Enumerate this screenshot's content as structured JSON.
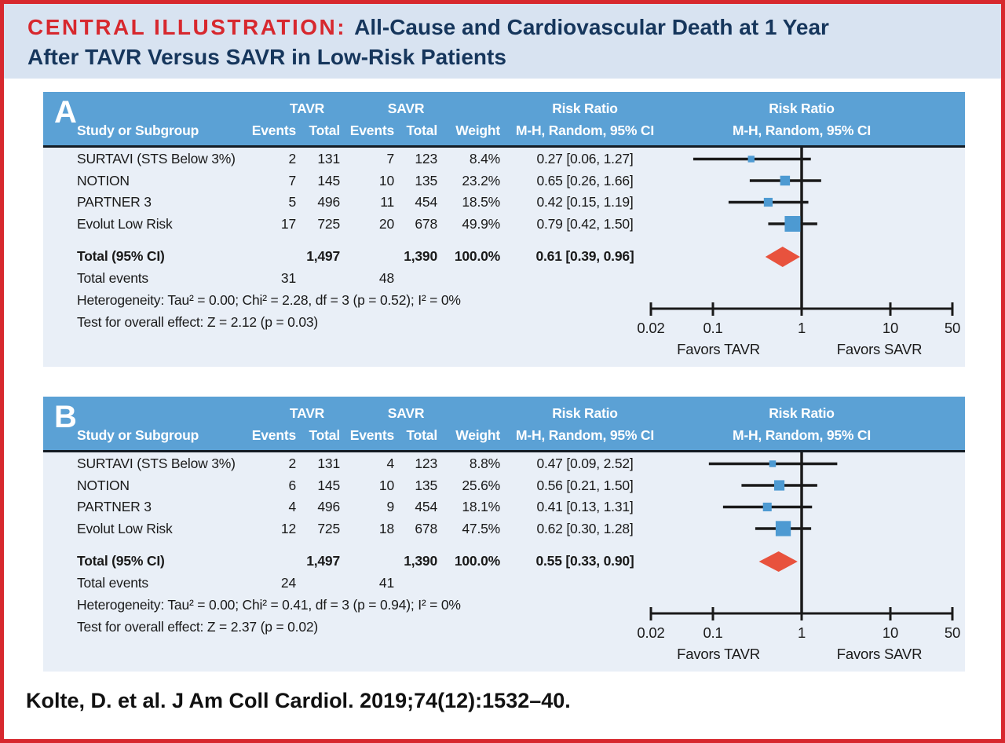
{
  "header": {
    "label": "CENTRAL ILLUSTRATION:",
    "title_line1": "All-Cause and Cardiovascular Death at 1 Year",
    "title_line2": "After TAVR Versus SAVR in Low-Risk Patients"
  },
  "footer": {
    "citation": "Kolte, D. et al. J Am Coll Cardiol. 2019;74(12):1532–40."
  },
  "colors": {
    "border_red": "#d7282e",
    "banner_bg": "#d8e3f1",
    "title_navy": "#16365c",
    "title_red": "#d7282e",
    "panel_header_blue": "#5ba1d5",
    "panel_body_bg": "#e9eff7",
    "marker_blue": "#4d9ad2",
    "diamond_red": "#e8523d",
    "line_color": "#1a1a1a"
  },
  "chart_data": {
    "type": "forest",
    "x_scale": "log",
    "xlim": [
      0.02,
      50
    ],
    "columns": {
      "study": "Study or Subgroup",
      "group1": "TAVR",
      "group2": "SAVR",
      "events": "Events",
      "total": "Total",
      "weight": "Weight",
      "risk_ratio": "Risk Ratio",
      "method": "M-H, Random, 95% CI"
    },
    "axis": {
      "ticks": [
        "0.02",
        "0.1",
        "1",
        "10",
        "50"
      ],
      "favors_left": "Favors TAVR",
      "favors_right": "Favors SAVR"
    },
    "panels": [
      {
        "label": "A",
        "studies": [
          {
            "name": "SURTAVI (STS Below 3%)",
            "tavr_events": "2",
            "tavr_total": "131",
            "savr_events": "7",
            "savr_total": "123",
            "weight": "8.4%",
            "weight_pct": 8.4,
            "rr_label": "0.27 [0.06, 1.27]",
            "rr": 0.27,
            "ci_low": 0.06,
            "ci_high": 1.27
          },
          {
            "name": "NOTION",
            "tavr_events": "7",
            "tavr_total": "145",
            "savr_events": "10",
            "savr_total": "135",
            "weight": "23.2%",
            "weight_pct": 23.2,
            "rr_label": "0.65 [0.26, 1.66]",
            "rr": 0.65,
            "ci_low": 0.26,
            "ci_high": 1.66
          },
          {
            "name": "PARTNER 3",
            "tavr_events": "5",
            "tavr_total": "496",
            "savr_events": "11",
            "savr_total": "454",
            "weight": "18.5%",
            "weight_pct": 18.5,
            "rr_label": "0.42 [0.15, 1.19]",
            "rr": 0.42,
            "ci_low": 0.15,
            "ci_high": 1.19
          },
          {
            "name": "Evolut Low Risk",
            "tavr_events": "17",
            "tavr_total": "725",
            "savr_events": "20",
            "savr_total": "678",
            "weight": "49.9%",
            "weight_pct": 49.9,
            "rr_label": "0.79 [0.42, 1.50]",
            "rr": 0.79,
            "ci_low": 0.42,
            "ci_high": 1.5
          }
        ],
        "total": {
          "label": "Total (95% CI)",
          "tavr_total": "1,497",
          "savr_total": "1,390",
          "weight": "100.0%",
          "rr_label": "0.61 [0.39, 0.96]",
          "rr": 0.61,
          "ci_low": 0.39,
          "ci_high": 0.96
        },
        "total_events": {
          "label": "Total events",
          "tavr": "31",
          "savr": "48"
        },
        "heterogeneity": "Heterogeneity: Tau² = 0.00; Chi² = 2.28, df = 3 (p = 0.52); I² = 0%",
        "overall_effect": "Test for overall effect: Z = 2.12 (p = 0.03)"
      },
      {
        "label": "B",
        "studies": [
          {
            "name": "SURTAVI (STS Below 3%)",
            "tavr_events": "2",
            "tavr_total": "131",
            "savr_events": "4",
            "savr_total": "123",
            "weight": "8.8%",
            "weight_pct": 8.8,
            "rr_label": "0.47 [0.09, 2.52]",
            "rr": 0.47,
            "ci_low": 0.09,
            "ci_high": 2.52
          },
          {
            "name": "NOTION",
            "tavr_events": "6",
            "tavr_total": "145",
            "savr_events": "10",
            "savr_total": "135",
            "weight": "25.6%",
            "weight_pct": 25.6,
            "rr_label": "0.56 [0.21, 1.50]",
            "rr": 0.56,
            "ci_low": 0.21,
            "ci_high": 1.5
          },
          {
            "name": "PARTNER 3",
            "tavr_events": "4",
            "tavr_total": "496",
            "savr_events": "9",
            "savr_total": "454",
            "weight": "18.1%",
            "weight_pct": 18.1,
            "rr_label": "0.41 [0.13, 1.31]",
            "rr": 0.41,
            "ci_low": 0.13,
            "ci_high": 1.31
          },
          {
            "name": "Evolut Low Risk",
            "tavr_events": "12",
            "tavr_total": "725",
            "savr_events": "18",
            "savr_total": "678",
            "weight": "47.5%",
            "weight_pct": 47.5,
            "rr_label": "0.62 [0.30, 1.28]",
            "rr": 0.62,
            "ci_low": 0.3,
            "ci_high": 1.28
          }
        ],
        "total": {
          "label": "Total (95% CI)",
          "tavr_total": "1,497",
          "savr_total": "1,390",
          "weight": "100.0%",
          "rr_label": "0.55 [0.33, 0.90]",
          "rr": 0.55,
          "ci_low": 0.33,
          "ci_high": 0.9
        },
        "total_events": {
          "label": "Total events",
          "tavr": "24",
          "savr": "41"
        },
        "heterogeneity": "Heterogeneity: Tau² = 0.00; Chi² = 0.41, df = 3 (p = 0.94); I² = 0%",
        "overall_effect": "Test for overall effect: Z = 2.37 (p = 0.02)"
      }
    ]
  }
}
